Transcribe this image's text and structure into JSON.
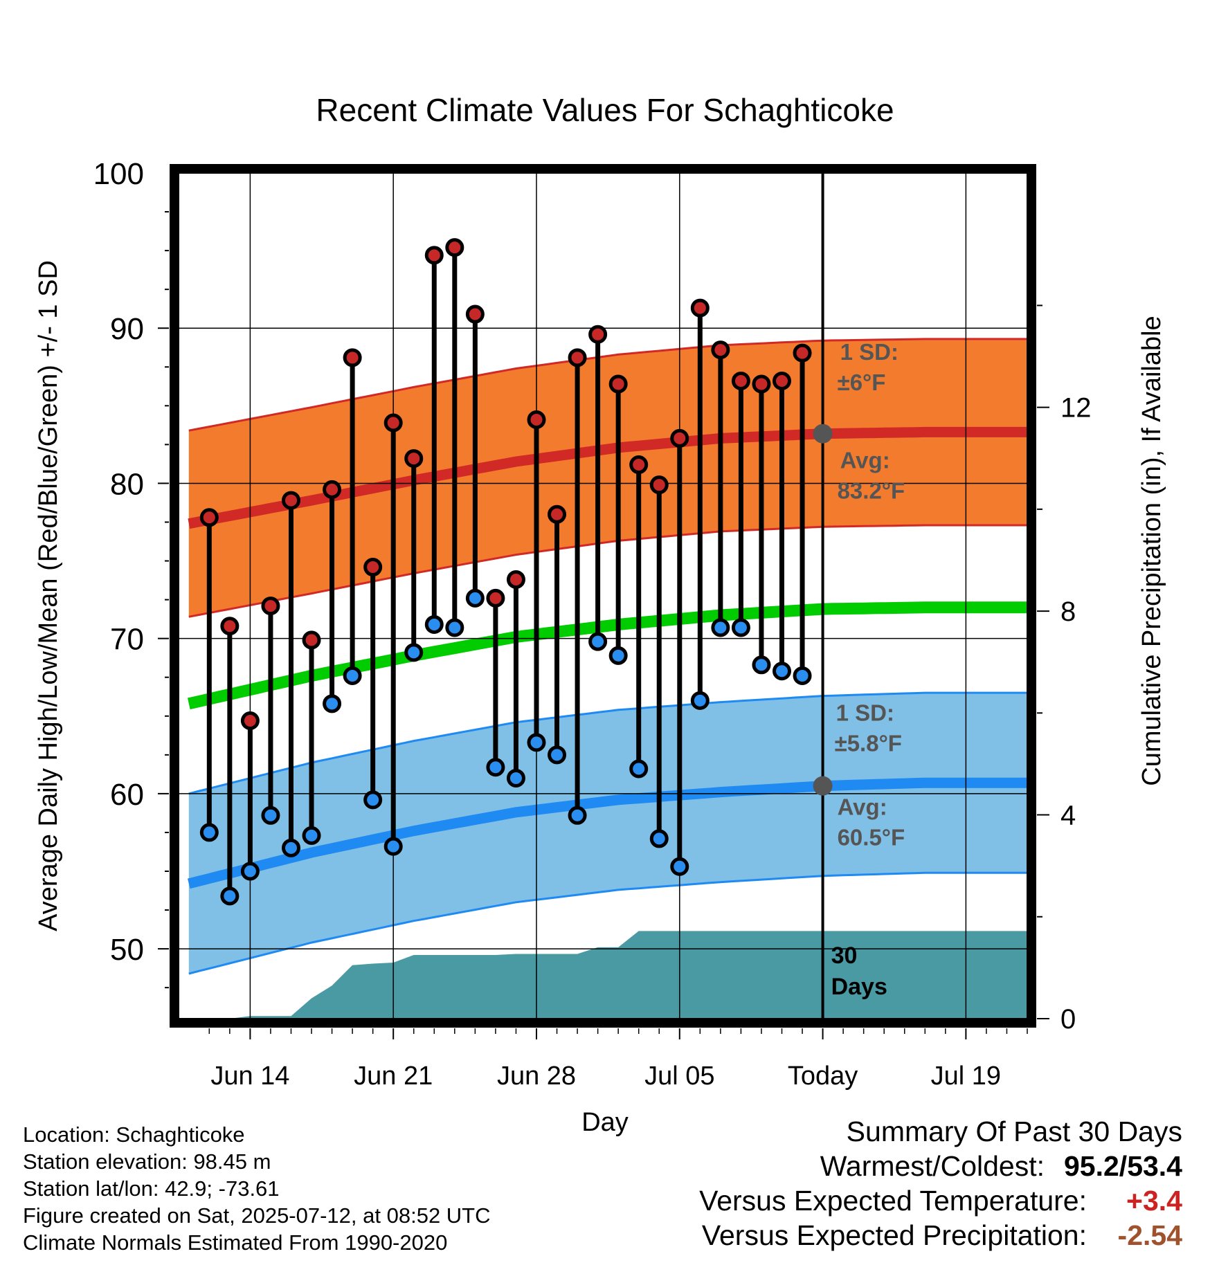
{
  "chart_data": {
    "type": "line",
    "title": "Recent Climate Values For Schaghticoke",
    "xlabel": "Day",
    "ylabel_left": "Average Daily High/Low/Mean (Red/Blue/Green) +/- 1 SD",
    "ylabel_right": "Cumulative Precipitation (in), If Available",
    "x_tick_labels": [
      "Jun 14",
      "Jun 21",
      "Jun 28",
      "Jul 05",
      "Today",
      "Jul 19"
    ],
    "x_tick_days": [
      2,
      9,
      16,
      23,
      30,
      37
    ],
    "x_range_days": [
      -1.5,
      40
    ],
    "ylim": [
      45.5,
      100
    ],
    "y_ticks": [
      50,
      60,
      70,
      80,
      90,
      100
    ],
    "ylim_right": [
      0,
      16.6
    ],
    "y_ticks_right": [
      0,
      4,
      8,
      12
    ],
    "grid": true,
    "today_day": 30,
    "daily_high": [
      77.8,
      70.8,
      64.7,
      72.1,
      78.9,
      69.9,
      79.6,
      88.1,
      74.6,
      83.9,
      81.6,
      94.7,
      95.2,
      90.9,
      72.6,
      73.8,
      84.1,
      78.0,
      88.1,
      89.6,
      86.4,
      81.2,
      79.9,
      82.9,
      91.3,
      88.6,
      86.6,
      86.4,
      86.6,
      88.4
    ],
    "daily_low": [
      57.5,
      53.4,
      55.0,
      58.6,
      56.5,
      57.3,
      65.8,
      67.6,
      59.6,
      56.6,
      69.1,
      70.9,
      70.7,
      72.6,
      61.7,
      61.0,
      63.3,
      62.5,
      58.6,
      69.8,
      68.9,
      61.6,
      57.1,
      55.3,
      66.0,
      70.7,
      70.7,
      68.3,
      67.9,
      67.6
    ],
    "series": [
      {
        "name": "Avg High",
        "x": [
          -1,
          5,
          10,
          15,
          20,
          25,
          30,
          35,
          40
        ],
        "values": [
          77.4,
          78.9,
          80.2,
          81.4,
          82.3,
          82.9,
          83.2,
          83.3,
          83.3
        ]
      },
      {
        "name": "Avg Low",
        "x": [
          -1,
          5,
          10,
          15,
          20,
          25,
          30,
          35,
          40
        ],
        "values": [
          54.2,
          56.2,
          57.6,
          58.8,
          59.6,
          60.1,
          60.5,
          60.7,
          60.7
        ]
      },
      {
        "name": "Avg Mean",
        "x": [
          -1,
          5,
          10,
          15,
          20,
          25,
          30,
          35,
          40
        ],
        "values": [
          65.8,
          67.6,
          68.9,
          70.1,
          70.9,
          71.5,
          71.9,
          72.0,
          72.0
        ]
      }
    ],
    "high_sd": 6.0,
    "low_sd": 5.8,
    "precip_x": [
      -1,
      1,
      2,
      3,
      4,
      5,
      6,
      7,
      8,
      9,
      10,
      11,
      12,
      13,
      14,
      15,
      16,
      17,
      18,
      19,
      20,
      21,
      22,
      23,
      24,
      25,
      26,
      27,
      28,
      29,
      30,
      31,
      32,
      33,
      34,
      35,
      36,
      37,
      38,
      39,
      40
    ],
    "precip_values": [
      0,
      0,
      0.05,
      0.05,
      0.05,
      0.4,
      0.65,
      1.05,
      1.08,
      1.1,
      1.25,
      1.25,
      1.25,
      1.25,
      1.25,
      1.27,
      1.27,
      1.27,
      1.27,
      1.4,
      1.4,
      1.72,
      1.72,
      1.72,
      1.72,
      1.72,
      1.72,
      1.72,
      1.72,
      1.72,
      1.72,
      1.72,
      1.72,
      1.72,
      1.72,
      1.72,
      1.72,
      1.72,
      1.72,
      1.72,
      1.72
    ],
    "annotations": {
      "high_sd": [
        "1 SD:",
        "±6°F"
      ],
      "high_avg": [
        "Avg:",
        "83.2°F"
      ],
      "low_sd": [
        "1 SD:",
        "±5.8°F"
      ],
      "low_avg": [
        "Avg:",
        "60.5°F"
      ],
      "window": [
        "30",
        "Days"
      ]
    }
  },
  "colors": {
    "high_band": "#f37b2d",
    "high_line": "#d12926",
    "low_band": "#80bfe6",
    "low_line": "#1f8af2",
    "mean_line": "#00cc00",
    "precip_fill": "#4a9aa3",
    "high_marker": "#c62828",
    "low_marker": "#2a8ef0",
    "annotation_text": "#555555",
    "positive_value": "#cc2222",
    "negative_value": "#a0522d"
  },
  "footer": {
    "location": "Location: Schaghticoke",
    "elevation": "Station elevation: 98.45 m",
    "latlon": "Station lat/lon: 42.9; -73.61",
    "created": "Figure created on Sat, 2025-07-12, at 08:52 UTC",
    "normals": "Climate Normals Estimated From 1990-2020"
  },
  "summary": {
    "title": "Summary Of Past 30 Days",
    "warm_label": "Warmest/Coldest:",
    "warm_value": "95.2/53.4",
    "temp_label": "Versus Expected Temperature:",
    "temp_value": "+3.4",
    "precip_label": "Versus Expected Precipitation:",
    "precip_value": "-2.54"
  }
}
